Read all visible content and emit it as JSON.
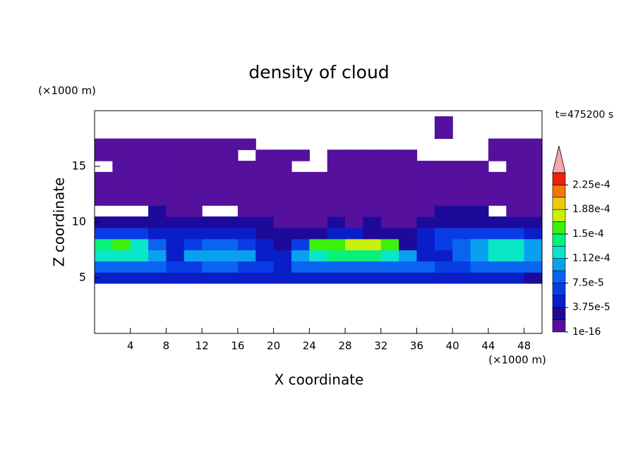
{
  "chart_data": {
    "type": "contour",
    "title": "density of cloud",
    "time_label": "t=475200 s",
    "x_label": "X coordinate",
    "y_label": "Z coordinate",
    "x_unit": "(×1000 m)",
    "y_unit": "(×1000 m)",
    "xlim": [
      0,
      50
    ],
    "ylim": [
      0,
      20
    ],
    "xticks": [
      4,
      8,
      12,
      16,
      20,
      24,
      28,
      32,
      36,
      40,
      44,
      48
    ],
    "yticks": [
      5,
      10,
      15
    ],
    "x": [
      1,
      3,
      5,
      7,
      9,
      11,
      13,
      15,
      17,
      19,
      21,
      23,
      25,
      27,
      29,
      31,
      33,
      35,
      37,
      39,
      41,
      43,
      45,
      47,
      49
    ],
    "y": [
      5,
      6,
      7,
      8,
      9,
      10,
      11,
      12,
      13,
      14,
      15,
      16,
      17,
      18,
      19
    ],
    "z": [
      [
        4e-05,
        4e-05,
        4e-05,
        4e-05,
        4e-05,
        4e-05,
        4e-05,
        4e-05,
        4e-05,
        4e-05,
        4e-05,
        4e-05,
        4e-05,
        4e-05,
        4e-05,
        4e-05,
        4e-05,
        4e-05,
        4e-05,
        4e-05,
        4e-05,
        4e-05,
        4e-05,
        4e-05,
        2e-05
      ],
      [
        8e-05,
        9e-05,
        9e-05,
        8e-05,
        6e-05,
        7e-05,
        8e-05,
        8e-05,
        7e-05,
        6e-05,
        5e-05,
        9e-05,
        9e-05,
        9e-05,
        9e-05,
        9e-05,
        9e-05,
        9e-05,
        8e-05,
        6e-05,
        7e-05,
        8e-05,
        9e-05,
        9e-05,
        8e-05
      ],
      [
        0.00012,
        0.00013,
        0.00012,
        0.00011,
        4e-05,
        0.0001,
        0.00011,
        0.00011,
        0.0001,
        5e-05,
        4e-05,
        0.00011,
        0.00013,
        0.000135,
        0.00014,
        0.00014,
        0.00013,
        0.00011,
        4e-05,
        5e-05,
        9e-05,
        0.00011,
        0.00012,
        0.00012,
        0.00011
      ],
      [
        0.00014,
        0.00015,
        0.00013,
        8e-05,
        4e-05,
        6e-05,
        9e-05,
        8e-05,
        7e-05,
        4e-05,
        3e-05,
        6e-05,
        0.00015,
        0.00016,
        0.00017,
        0.00017,
        0.00015,
        3e-05,
        4e-05,
        6e-05,
        8e-05,
        0.0001,
        0.00012,
        0.00012,
        0.00011
      ],
      [
        6e-05,
        7e-05,
        6e-05,
        5e-05,
        4e-05,
        5e-05,
        5e-05,
        4e-05,
        4e-05,
        3e-05,
        2e-05,
        2e-05,
        3e-05,
        4e-05,
        4e-05,
        3e-05,
        2e-05,
        2e-05,
        4e-05,
        6e-05,
        6e-05,
        7e-05,
        6e-05,
        6e-05,
        5e-05
      ],
      [
        3e-05,
        2.5e-05,
        3e-05,
        3e-05,
        3e-05,
        2e-05,
        3e-05,
        2e-05,
        2e-05,
        2e-05,
        1e-05,
        1e-05,
        1e-05,
        2e-05,
        1e-05,
        2e-05,
        1e-05,
        1e-05,
        2e-05,
        3e-05,
        3e-05,
        3e-05,
        3e-05,
        2e-05,
        2e-05
      ],
      [
        null,
        null,
        null,
        2e-05,
        1e-05,
        1e-05,
        null,
        null,
        1e-05,
        1e-05,
        1e-05,
        1e-05,
        1e-05,
        1e-05,
        1e-05,
        1e-05,
        1e-05,
        1e-05,
        1e-05,
        2e-05,
        2e-05,
        2e-05,
        null,
        1e-05,
        1e-05
      ],
      [
        1e-05,
        1e-05,
        1e-05,
        1e-05,
        1e-05,
        1e-05,
        1e-05,
        1e-05,
        1e-05,
        1e-05,
        1e-05,
        1e-05,
        1e-05,
        1e-05,
        1e-05,
        1e-05,
        1e-05,
        1e-05,
        1e-05,
        1e-05,
        1e-05,
        1e-05,
        1e-05,
        1e-05,
        1e-05
      ],
      [
        8e-06,
        8e-06,
        8e-06,
        8e-06,
        8e-06,
        8e-06,
        8e-06,
        8e-06,
        8e-06,
        8e-06,
        8e-06,
        8e-06,
        8e-06,
        8e-06,
        8e-06,
        8e-06,
        8e-06,
        8e-06,
        8e-06,
        8e-06,
        8e-06,
        8e-06,
        8e-06,
        8e-06,
        8e-06
      ],
      [
        8e-06,
        8e-06,
        8e-06,
        8e-06,
        8e-06,
        8e-06,
        8e-06,
        8e-06,
        8e-06,
        8e-06,
        8e-06,
        8e-06,
        8e-06,
        8e-06,
        8e-06,
        8e-06,
        8e-06,
        8e-06,
        8e-06,
        8e-06,
        8e-06,
        8e-06,
        8e-06,
        8e-06,
        8e-06
      ],
      [
        null,
        5e-06,
        5e-06,
        5e-06,
        5e-06,
        5e-06,
        5e-06,
        5e-06,
        5e-06,
        5e-06,
        5e-06,
        null,
        null,
        5e-06,
        5e-06,
        5e-06,
        5e-06,
        5e-06,
        5e-06,
        5e-06,
        5e-06,
        5e-06,
        null,
        5e-06,
        5e-06
      ],
      [
        5e-06,
        5e-06,
        5e-06,
        5e-06,
        5e-06,
        5e-06,
        5e-06,
        5e-06,
        null,
        5e-06,
        5e-06,
        5e-06,
        null,
        5e-06,
        5e-06,
        5e-06,
        5e-06,
        5e-06,
        null,
        null,
        null,
        null,
        5e-06,
        5e-06,
        5e-06
      ],
      [
        5e-06,
        5e-06,
        5e-06,
        5e-06,
        5e-06,
        5e-06,
        5e-06,
        5e-06,
        5e-06,
        null,
        null,
        null,
        null,
        null,
        null,
        null,
        null,
        null,
        null,
        null,
        null,
        null,
        5e-06,
        5e-06,
        5e-06
      ],
      [
        null,
        null,
        null,
        null,
        null,
        null,
        null,
        null,
        null,
        null,
        null,
        null,
        null,
        null,
        null,
        null,
        null,
        null,
        null,
        5e-06,
        null,
        null,
        null,
        null,
        null
      ],
      [
        null,
        null,
        null,
        null,
        null,
        null,
        null,
        null,
        null,
        null,
        null,
        null,
        null,
        null,
        null,
        null,
        null,
        null,
        null,
        5e-06,
        null,
        null,
        null,
        null,
        null
      ]
    ],
    "levels": [
      1e-16,
      1.875e-05,
      3.75e-05,
      5.625e-05,
      7.5e-05,
      9.375e-05,
      0.0001125,
      0.00013125,
      0.00015,
      0.00016875,
      0.0001875,
      0.00020625,
      0.000225,
      0.00024375
    ],
    "colors": [
      "#55109e",
      "#1e0a9a",
      "#0a1ec8",
      "#0a3ce6",
      "#0a64f0",
      "#0aa0f0",
      "#0ae6c8",
      "#0af078",
      "#3cf00a",
      "#c8f00a",
      "#f0c80a",
      "#f0780a",
      "#f01e0a"
    ],
    "extend_color": "#f4a8a8",
    "colorbar_ticks": [
      {
        "value": 1e-16,
        "label": "1e-16"
      },
      {
        "value": 3.75e-05,
        "label": "3.75e-5"
      },
      {
        "value": 7.5e-05,
        "label": "7.5e-5"
      },
      {
        "value": 0.0001125,
        "label": "1.12e-4"
      },
      {
        "value": 0.00015,
        "label": "1.5e-4"
      },
      {
        "value": 0.0001875,
        "label": "1.88e-4"
      },
      {
        "value": 0.000225,
        "label": "2.25e-4"
      }
    ]
  }
}
